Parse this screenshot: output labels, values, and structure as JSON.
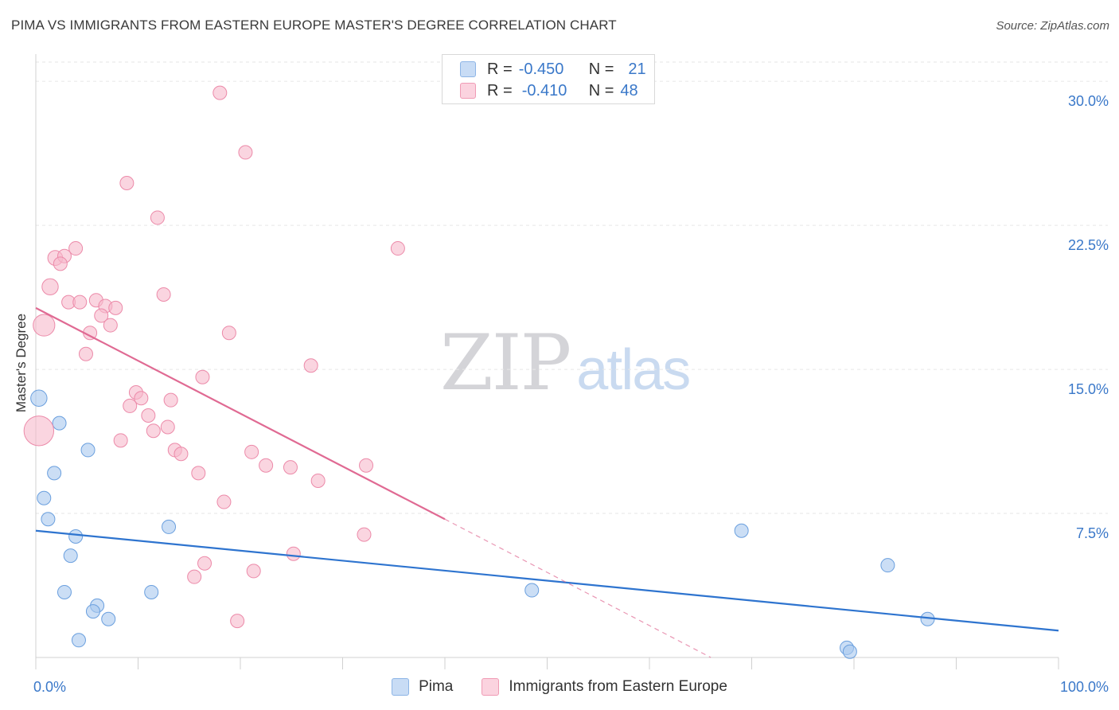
{
  "title": "PIMA VS IMMIGRANTS FROM EASTERN EUROPE MASTER'S DEGREE CORRELATION CHART",
  "source": "Source: ZipAtlas.com",
  "legend_top": [
    {
      "r_label": "R =",
      "r_value": "-0.450",
      "n_label": "N =",
      "n_value": "21",
      "color": "#a9c8ef"
    },
    {
      "r_label": "R =",
      "r_value": "-0.410",
      "n_label": "N =",
      "n_value": "48",
      "color": "#f6b9cc"
    }
  ],
  "watermark": {
    "zip": "ZIP",
    "atlas": "atlas"
  },
  "chart_data": {
    "type": "scatter",
    "title": "PIMA VS IMMIGRANTS FROM EASTERN EUROPE MASTER'S DEGREE CORRELATION CHART",
    "ylabel": "Master's Degree",
    "xlabel": "",
    "xlim": [
      0,
      100
    ],
    "ylim": [
      0,
      31
    ],
    "x_ticks": [
      "0.0%",
      "100.0%"
    ],
    "y_ticks": [
      {
        "value": 7.5,
        "label": "7.5%"
      },
      {
        "value": 15.0,
        "label": "15.0%"
      },
      {
        "value": 22.5,
        "label": "22.5%"
      },
      {
        "value": 30.0,
        "label": "30.0%"
      }
    ],
    "grid": true,
    "legend_position": "bottom-center",
    "series": [
      {
        "name": "Pima",
        "color": "#a9c8ef",
        "stroke": "#6a9fde",
        "trend_color": "#2e74cf",
        "trend": {
          "x0": 0,
          "y0": 6.6,
          "x1": 100,
          "y1": 1.4
        },
        "points": [
          {
            "x": 0.3,
            "y": 13.5,
            "s": 1.2
          },
          {
            "x": 2.3,
            "y": 12.2,
            "s": 1
          },
          {
            "x": 5.1,
            "y": 10.8,
            "s": 1
          },
          {
            "x": 1.8,
            "y": 9.6,
            "s": 1
          },
          {
            "x": 0.8,
            "y": 8.3,
            "s": 1
          },
          {
            "x": 1.2,
            "y": 7.2,
            "s": 1
          },
          {
            "x": 3.9,
            "y": 6.3,
            "s": 1
          },
          {
            "x": 13.0,
            "y": 6.8,
            "s": 1
          },
          {
            "x": 3.4,
            "y": 5.3,
            "s": 1
          },
          {
            "x": 2.8,
            "y": 3.4,
            "s": 1
          },
          {
            "x": 11.3,
            "y": 3.4,
            "s": 1
          },
          {
            "x": 6.0,
            "y": 2.7,
            "s": 1
          },
          {
            "x": 5.6,
            "y": 2.4,
            "s": 1
          },
          {
            "x": 7.1,
            "y": 2.0,
            "s": 1
          },
          {
            "x": 4.2,
            "y": 0.9,
            "s": 1
          },
          {
            "x": 48.5,
            "y": 3.5,
            "s": 1
          },
          {
            "x": 69.0,
            "y": 6.6,
            "s": 1
          },
          {
            "x": 83.3,
            "y": 4.8,
            "s": 1
          },
          {
            "x": 87.2,
            "y": 2.0,
            "s": 1
          },
          {
            "x": 79.3,
            "y": 0.5,
            "s": 1
          },
          {
            "x": 79.6,
            "y": 0.3,
            "s": 1
          }
        ]
      },
      {
        "name": "Immigrants from Eastern Europe",
        "color": "#f6b9cc",
        "stroke": "#ec8aa9",
        "trend_color": "#e06a93",
        "trend": {
          "x0": 0,
          "y0": 18.2,
          "x1": 40,
          "y1": 7.2
        },
        "trend_dashed": {
          "x0": 40,
          "y0": 7.2,
          "x1": 66,
          "y1": 0
        },
        "points": [
          {
            "x": 18.0,
            "y": 29.4,
            "s": 1
          },
          {
            "x": 20.5,
            "y": 26.3,
            "s": 1
          },
          {
            "x": 8.9,
            "y": 24.7,
            "s": 1
          },
          {
            "x": 11.9,
            "y": 22.9,
            "s": 1
          },
          {
            "x": 3.9,
            "y": 21.3,
            "s": 1
          },
          {
            "x": 1.9,
            "y": 20.8,
            "s": 1.1
          },
          {
            "x": 2.8,
            "y": 20.9,
            "s": 1
          },
          {
            "x": 2.4,
            "y": 20.5,
            "s": 1
          },
          {
            "x": 35.4,
            "y": 21.3,
            "s": 1
          },
          {
            "x": 1.4,
            "y": 19.3,
            "s": 1.2
          },
          {
            "x": 12.5,
            "y": 18.9,
            "s": 1
          },
          {
            "x": 3.2,
            "y": 18.5,
            "s": 1
          },
          {
            "x": 4.3,
            "y": 18.5,
            "s": 1
          },
          {
            "x": 5.9,
            "y": 18.6,
            "s": 1
          },
          {
            "x": 6.8,
            "y": 18.3,
            "s": 1
          },
          {
            "x": 7.8,
            "y": 18.2,
            "s": 1
          },
          {
            "x": 6.4,
            "y": 17.8,
            "s": 1
          },
          {
            "x": 0.8,
            "y": 17.3,
            "s": 1.6
          },
          {
            "x": 7.3,
            "y": 17.3,
            "s": 1
          },
          {
            "x": 5.3,
            "y": 16.9,
            "s": 1
          },
          {
            "x": 18.9,
            "y": 16.9,
            "s": 1
          },
          {
            "x": 4.9,
            "y": 15.8,
            "s": 1
          },
          {
            "x": 26.9,
            "y": 15.2,
            "s": 1
          },
          {
            "x": 16.3,
            "y": 14.6,
            "s": 1
          },
          {
            "x": 9.8,
            "y": 13.8,
            "s": 1
          },
          {
            "x": 10.3,
            "y": 13.5,
            "s": 1
          },
          {
            "x": 13.2,
            "y": 13.4,
            "s": 1
          },
          {
            "x": 9.2,
            "y": 13.1,
            "s": 1
          },
          {
            "x": 11.0,
            "y": 12.6,
            "s": 1
          },
          {
            "x": 12.9,
            "y": 12.0,
            "s": 1
          },
          {
            "x": 11.5,
            "y": 11.8,
            "s": 1
          },
          {
            "x": 0.3,
            "y": 11.8,
            "s": 2.2
          },
          {
            "x": 8.3,
            "y": 11.3,
            "s": 1
          },
          {
            "x": 13.6,
            "y": 10.8,
            "s": 1
          },
          {
            "x": 14.2,
            "y": 10.6,
            "s": 1
          },
          {
            "x": 21.1,
            "y": 10.7,
            "s": 1
          },
          {
            "x": 22.5,
            "y": 10.0,
            "s": 1
          },
          {
            "x": 24.9,
            "y": 9.9,
            "s": 1
          },
          {
            "x": 32.3,
            "y": 10.0,
            "s": 1
          },
          {
            "x": 15.9,
            "y": 9.6,
            "s": 1
          },
          {
            "x": 27.6,
            "y": 9.2,
            "s": 1
          },
          {
            "x": 18.4,
            "y": 8.1,
            "s": 1
          },
          {
            "x": 32.1,
            "y": 6.4,
            "s": 1
          },
          {
            "x": 25.2,
            "y": 5.4,
            "s": 1
          },
          {
            "x": 16.5,
            "y": 4.9,
            "s": 1
          },
          {
            "x": 21.3,
            "y": 4.5,
            "s": 1
          },
          {
            "x": 15.5,
            "y": 4.2,
            "s": 1
          },
          {
            "x": 19.7,
            "y": 1.9,
            "s": 1
          }
        ]
      }
    ]
  }
}
